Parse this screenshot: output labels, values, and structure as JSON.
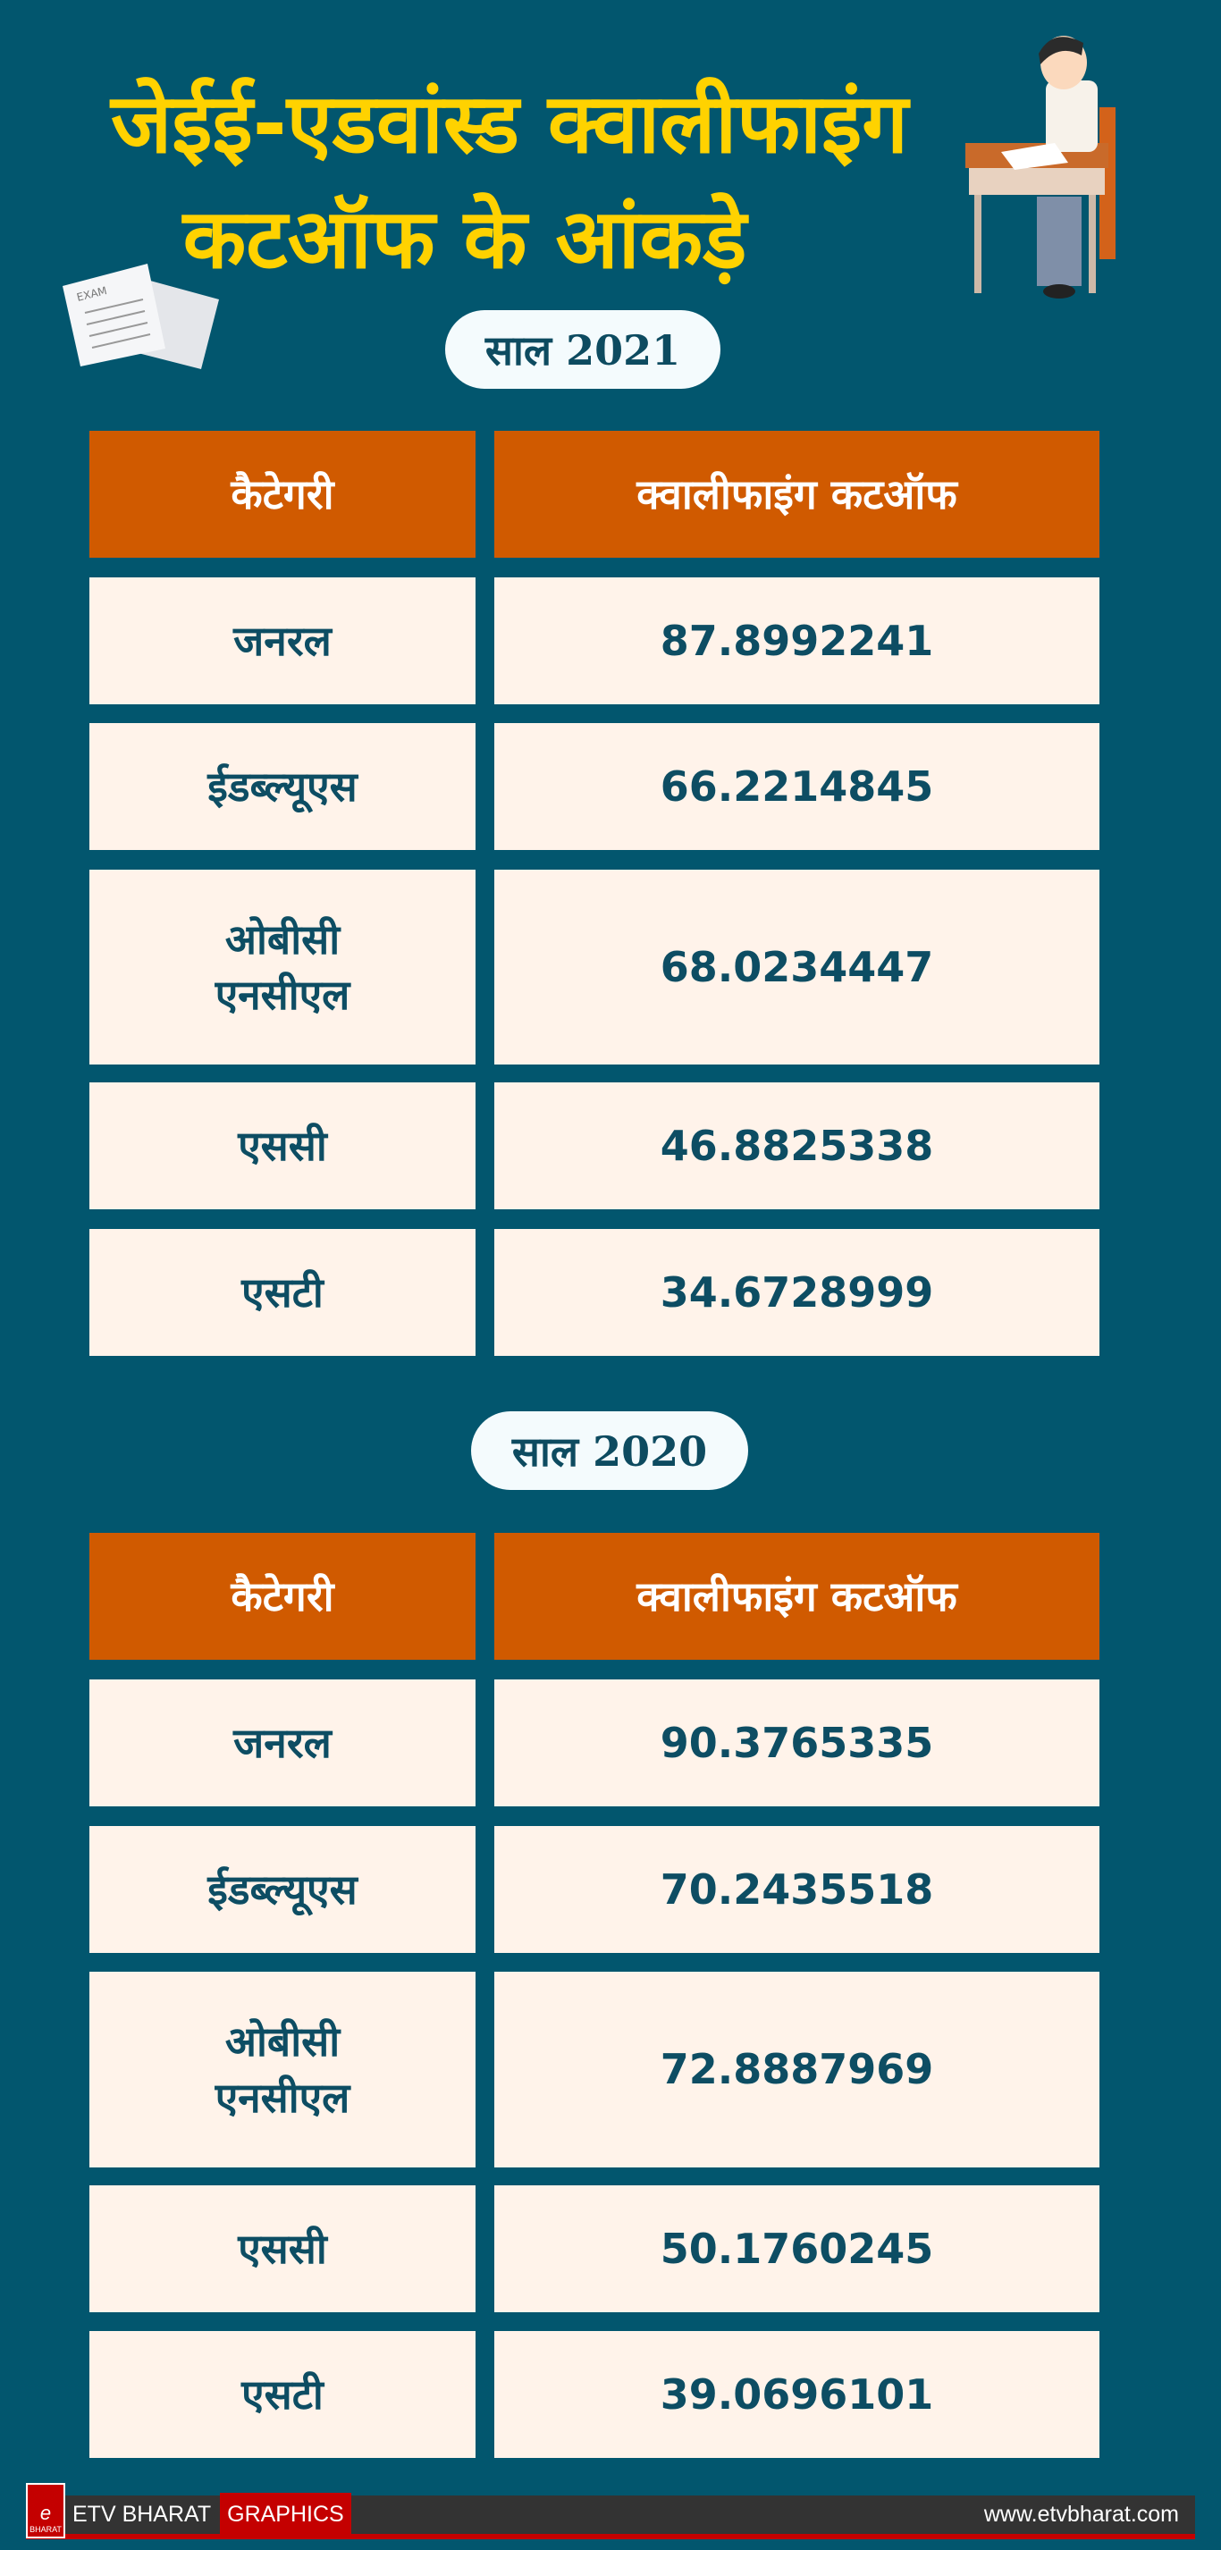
{
  "title": {
    "line1": "जेईई-एडवांस्ड क्वालीफाइंग",
    "line2": "कटऑफ के आंकड़े"
  },
  "colors": {
    "background": "#02566e",
    "header": "#d05a00",
    "cell": "#fff3ea",
    "title": "#ffd200",
    "text": "#0d4d63"
  },
  "columns": [
    "कैटेगरी",
    "क्वालीफाइंग कटऑफ"
  ],
  "tables": [
    {
      "year_label": "साल 2021",
      "rows": [
        {
          "category": "जनरल",
          "cutoff": "87.8992241"
        },
        {
          "category": "ईडब्ल्यूएस",
          "cutoff": "66.2214845"
        },
        {
          "category": "ओबीसी एनसीएल",
          "cutoff": "68.0234447"
        },
        {
          "category": "एससी",
          "cutoff": "46.8825338"
        },
        {
          "category": "एसटी",
          "cutoff": "34.6728999"
        }
      ]
    },
    {
      "year_label": "साल 2020",
      "rows": [
        {
          "category": "जनरल",
          "cutoff": "90.3765335"
        },
        {
          "category": "ईडब्ल्यूएस",
          "cutoff": "70.2435518"
        },
        {
          "category": "ओबीसी एनसीएल",
          "cutoff": "72.8887969"
        },
        {
          "category": "एससी",
          "cutoff": "50.1760245"
        },
        {
          "category": "एसटी",
          "cutoff": "39.0696101"
        }
      ]
    }
  ],
  "illustration": {
    "exam_paper_text": "EXAM"
  },
  "footer": {
    "logo_text": "BHARAT",
    "brand": "ETV BHARAT",
    "section": "GRAPHICS",
    "url": "www.etvbharat.com"
  }
}
